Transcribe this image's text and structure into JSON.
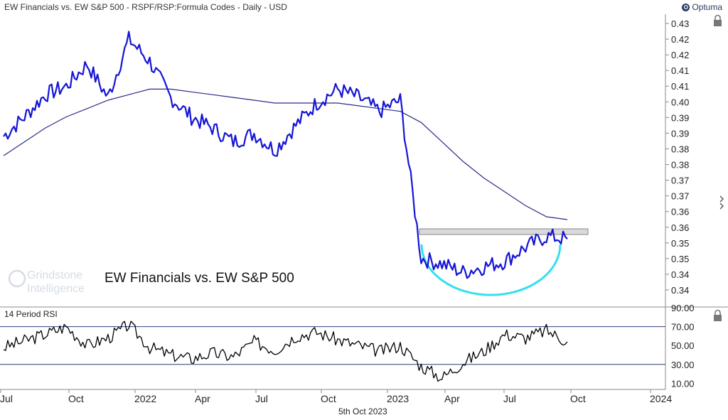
{
  "header": {
    "title": "EW Financials vs. EW S&P 500 - RSPF/RSP:Formula Codes - Daily - USD",
    "brand": "Optuma",
    "brand_icon": "optuma-logo-icon"
  },
  "watermark": {
    "line1": "Grindstone",
    "line2": "Intelligence"
  },
  "date_label": "5th Oct 2023",
  "colors": {
    "price": "#1515d6",
    "ma": "#2b2b8a",
    "rsi": "#000000",
    "support_band": "#d9d9d9",
    "base_arc": "#33e0ee",
    "guide": "#2f3f7a"
  },
  "chart_data": [
    {
      "type": "line",
      "title": "EW Financials vs. EW S&P 500",
      "ylim": [
        0.33,
        0.435
      ],
      "yticks": [
        "0.43",
        "0.42",
        "0.42",
        "0.41",
        "0.41",
        "0.40",
        "0.39",
        "0.39",
        "0.38",
        "0.38",
        "0.37",
        "0.37",
        "0.36",
        "0.36",
        "0.35",
        "0.35",
        "0.34",
        "0.34"
      ],
      "x": [
        "2021-07",
        "2021-08",
        "2021-09",
        "2021-10",
        "2021-11",
        "2021-12",
        "2022-01",
        "2022-02",
        "2022-03",
        "2022-04",
        "2022-05",
        "2022-06",
        "2022-07",
        "2022-08",
        "2022-09",
        "2022-10",
        "2022-11",
        "2022-12",
        "2023-01",
        "2023-02",
        "2023-03",
        "2023-04",
        "2023-05",
        "2023-06",
        "2023-07",
        "2023-08",
        "2023-09",
        "2023-10"
      ],
      "series": [
        {
          "values": [
            0.391,
            0.398,
            0.406,
            0.409,
            0.417,
            0.405,
            0.426,
            0.418,
            0.405,
            0.398,
            0.394,
            0.389,
            0.392,
            0.386,
            0.395,
            0.403,
            0.408,
            0.405,
            0.4,
            0.404,
            0.347,
            0.345,
            0.342,
            0.344,
            0.346,
            0.351,
            0.355,
            0.354
          ]
        },
        {
          "values": [
            0.384,
            0.389,
            0.394,
            0.398,
            0.401,
            0.404,
            0.406,
            0.408,
            0.408,
            0.407,
            0.406,
            0.405,
            0.404,
            0.403,
            0.403,
            0.403,
            0.403,
            0.402,
            0.401,
            0.4,
            0.396,
            0.389,
            0.382,
            0.376,
            0.371,
            0.366,
            0.362,
            0.361
          ]
        }
      ],
      "annotations": [
        "support band near 0.355",
        "rounded base arc beneath 2023 lows"
      ]
    },
    {
      "type": "line",
      "title": "14 Period RSI",
      "ylim": [
        5,
        90
      ],
      "yticks": [
        "90.00",
        "70.00",
        "50.00",
        "30.00",
        "10.00"
      ],
      "reference_lines": [
        70,
        30
      ],
      "x_axis_labels": [
        "Jul",
        "Oct",
        "2022",
        "Apr",
        "Jul",
        "Oct",
        "2023",
        "Apr",
        "Jul",
        "Oct",
        "2024"
      ],
      "series": [
        {
          "values": [
            48,
            55,
            62,
            70,
            50,
            58,
            72,
            48,
            40,
            36,
            42,
            38,
            54,
            45,
            60,
            64,
            56,
            50,
            44,
            50,
            28,
            16,
            32,
            44,
            62,
            58,
            66,
            54
          ]
        }
      ]
    }
  ]
}
